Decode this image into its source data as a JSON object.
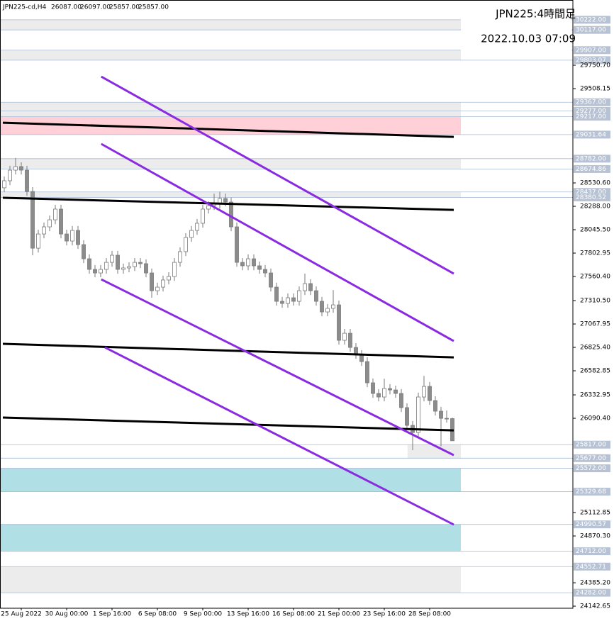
{
  "chart_data": {
    "type": "candlestick",
    "symbol": "JPN225-cd,H4",
    "header_values": [
      "26087.00",
      "26097.00",
      "25857.00",
      "25857.00"
    ],
    "title": "JPN225:4時間足",
    "subtitle": "2022.10.03 07:09",
    "categories": [
      null,
      null,
      null,
      "25 Aug 2022",
      null,
      null,
      null,
      null,
      null,
      null,
      null,
      "30 Aug 00:00",
      null,
      null,
      null,
      null,
      null,
      null,
      null,
      "1 Sep 16:00",
      null,
      null,
      null,
      null,
      null,
      null,
      null,
      "6 Sep 08:00",
      null,
      null,
      null,
      null,
      null,
      null,
      null,
      "9 Sep 00:00",
      null,
      null,
      null,
      null,
      null,
      null,
      null,
      "13 Sep 16:00",
      null,
      null,
      null,
      null,
      null,
      null,
      null,
      "16 Sep 08:00",
      null,
      null,
      null,
      null,
      null,
      null,
      null,
      "21 Sep 00:00",
      null,
      null,
      null,
      null,
      null,
      null,
      null,
      "23 Sep 16:00",
      null,
      null,
      null,
      null,
      null,
      null,
      null,
      "28 Sep 08:00",
      null,
      null,
      null,
      null
    ],
    "open": [
      28480,
      28553,
      28663,
      28700,
      28663,
      28442,
      27854,
      28001,
      28075,
      28148,
      28259,
      28001,
      27928,
      28038,
      27891,
      27744,
      27634,
      27597,
      27634,
      27707,
      27781,
      27634,
      27649,
      27663,
      27707,
      27693,
      27597,
      27413,
      27450,
      27524,
      27560,
      27707,
      27818,
      27965,
      28038,
      28112,
      28259,
      28295,
      28310,
      28369,
      28332,
      28075,
      27707,
      27671,
      27744,
      27671,
      27634,
      27597,
      27450,
      27303,
      27281,
      27340,
      27303,
      27413,
      27487,
      27413,
      27303,
      27193,
      27230,
      27266,
      26899,
      26972,
      26825,
      26752,
      26678,
      26458,
      26348,
      26311,
      26399,
      26384,
      26348,
      26201,
      26017,
      25943,
      26311,
      26421,
      26274,
      26164,
      26090,
      26087
    ],
    "high": [
      28598,
      28708,
      28790,
      28745,
      28708,
      28487,
      28046,
      28120,
      28193,
      28304,
      28304,
      28046,
      28083,
      28083,
      27936,
      27789,
      27679,
      27679,
      27752,
      27826,
      27826,
      27694,
      27708,
      27752,
      27752,
      27738,
      27642,
      27495,
      27569,
      27605,
      27752,
      27863,
      28010,
      28083,
      28157,
      28304,
      28340,
      28420,
      28440,
      28420,
      28377,
      28120,
      27752,
      27789,
      27789,
      27716,
      27679,
      27642,
      27495,
      27348,
      27385,
      27385,
      27458,
      27590,
      27532,
      27458,
      27348,
      27275,
      27420,
      27311,
      27017,
      27017,
      26870,
      26797,
      26723,
      26503,
      26393,
      26500,
      26444,
      26429,
      26393,
      26246,
      26062,
      26356,
      26530,
      26466,
      26319,
      26209,
      26172,
      26097
    ],
    "low": [
      28435,
      28508,
      28618,
      28618,
      28397,
      27780,
      27809,
      27956,
      28030,
      28103,
      27956,
      27883,
      27883,
      27846,
      27699,
      27589,
      27552,
      27552,
      27589,
      27662,
      27589,
      27589,
      27604,
      27618,
      27648,
      27552,
      27340,
      27368,
      27405,
      27479,
      27515,
      27662,
      27773,
      27920,
      27993,
      28067,
      28214,
      28250,
      28265,
      28287,
      28030,
      27662,
      27626,
      27626,
      27626,
      27589,
      27552,
      27405,
      27258,
      27236,
      27236,
      27258,
      27258,
      27368,
      27368,
      27258,
      27148,
      27148,
      27185,
      26854,
      26854,
      26780,
      26707,
      26633,
      26413,
      26303,
      26266,
      26266,
      26339,
      26303,
      26156,
      25972,
      25760,
      25898,
      26266,
      26229,
      26119,
      25800,
      26045,
      25857
    ],
    "close": [
      28553,
      28663,
      28700,
      28663,
      28442,
      27854,
      28001,
      28075,
      28148,
      28259,
      28001,
      27928,
      28038,
      27891,
      27744,
      27634,
      27597,
      27634,
      27707,
      27781,
      27634,
      27649,
      27663,
      27707,
      27693,
      27597,
      27413,
      27450,
      27524,
      27560,
      27707,
      27818,
      27965,
      28038,
      28112,
      28259,
      28295,
      28310,
      28369,
      28332,
      28075,
      27707,
      27671,
      27744,
      27671,
      27634,
      27597,
      27450,
      27303,
      27281,
      27340,
      27303,
      27413,
      27487,
      27413,
      27303,
      27193,
      27230,
      27266,
      26899,
      26972,
      26825,
      26752,
      26678,
      26458,
      26348,
      26311,
      26399,
      26384,
      26348,
      26201,
      26017,
      25943,
      26311,
      26421,
      26274,
      26164,
      26090,
      26087,
      25857
    ],
    "up_color": "#ffffff",
    "down_color": "#8c8c8c",
    "wick_color": "#7a7a7a",
    "ylim": [
      24121,
      30427
    ],
    "yticks": [
      {
        "value": 29750.7,
        "label": "29750.70"
      },
      {
        "value": 29508.15,
        "label": "29508.15"
      },
      {
        "value": 28530.6,
        "label": "28530.60"
      },
      {
        "value": 28288,
        "label": "28288.00"
      },
      {
        "value": 28045.5,
        "label": "28045.50"
      },
      {
        "value": 27802.95,
        "label": "27802.95"
      },
      {
        "value": 27560.4,
        "label": "27560.40"
      },
      {
        "value": 27310.5,
        "label": "27310.50"
      },
      {
        "value": 27067.95,
        "label": "27067.95"
      },
      {
        "value": 26825.4,
        "label": "26825.40"
      },
      {
        "value": 26582.85,
        "label": "26582.85"
      },
      {
        "value": 26332.95,
        "label": "26332.95"
      },
      {
        "value": 26090.4,
        "label": "26090.40"
      },
      {
        "value": 25112.85,
        "label": "25112.85"
      },
      {
        "value": 24870.3,
        "label": "24870.30"
      },
      {
        "value": 24385.2,
        "label": "24385.20"
      },
      {
        "value": 24142.65,
        "label": "24142.65"
      }
    ],
    "levels": [
      {
        "value": 30222,
        "label": "30222.00"
      },
      {
        "value": 30117,
        "label": "30117.00"
      },
      {
        "value": 29907,
        "label": "29907.00"
      },
      {
        "value": 29803.07,
        "label": "29803.07"
      },
      {
        "value": 29367,
        "label": "29367.00"
      },
      {
        "value": 29277,
        "label": "29277.00"
      },
      {
        "value": 29217,
        "label": "29217.00"
      },
      {
        "value": 29031.64,
        "label": "29031.64"
      },
      {
        "value": 28782,
        "label": "28782.00"
      },
      {
        "value": 28674.86,
        "label": "28674.86"
      },
      {
        "value": 28437,
        "label": "28437.00"
      },
      {
        "value": 28380.52,
        "label": "28380.52"
      },
      {
        "value": 25817,
        "label": "25817.00"
      },
      {
        "value": 25677,
        "label": "25677.00"
      },
      {
        "value": 25572,
        "label": "25572.00"
      },
      {
        "value": 25329.68,
        "label": "25329.68"
      },
      {
        "value": 24990.57,
        "label": "24990.57"
      },
      {
        "value": 24712,
        "label": "24712.00"
      },
      {
        "value": 24552.71,
        "label": "24552.71"
      },
      {
        "value": 24282,
        "label": "24282.00"
      }
    ],
    "zones": [
      {
        "low": 30117,
        "high": 30222,
        "color": "#ececec"
      },
      {
        "low": 29803.07,
        "high": 29907,
        "color": "#ececec"
      },
      {
        "low": 29217,
        "high": 29367,
        "color": "#ececec"
      },
      {
        "low": 29031.64,
        "high": 29217,
        "color": "#ffd0d8"
      },
      {
        "low": 28674.86,
        "high": 28782,
        "color": "#ececec"
      },
      {
        "low": 28380.52,
        "high": 28437,
        "color": "#ececec"
      },
      {
        "low": 25677,
        "high": 25817,
        "color": "#ececec",
        "start": 71.1
      },
      {
        "low": 25329.68,
        "high": 25572,
        "color": "#b0dfe6"
      },
      {
        "low": 24712,
        "high": 24990.57,
        "color": "#b0dfe6"
      },
      {
        "low": 24282,
        "high": 24552.71,
        "color": "#ececec"
      }
    ],
    "trendlines": [
      {
        "x": [
          -0.25,
          79.25
        ],
        "y": [
          29155,
          29008
        ],
        "color": "#000000"
      },
      {
        "x": [
          -0.25,
          79.25
        ],
        "y": [
          28376,
          28251
        ],
        "color": "#000000"
      },
      {
        "x": [
          -0.25,
          79.25
        ],
        "y": [
          26862,
          26722
        ],
        "color": "#000000"
      },
      {
        "x": [
          -0.25,
          79.25
        ],
        "y": [
          26098,
          25965
        ],
        "color": "#000000"
      },
      {
        "x": [
          17.1,
          79.25
        ],
        "y": [
          29633,
          27590
        ],
        "color": "#8a2be2"
      },
      {
        "x": [
          17.1,
          79.25
        ],
        "y": [
          28935,
          26891
        ],
        "color": "#8a2be2"
      },
      {
        "x": [
          17.1,
          79.25
        ],
        "y": [
          27531,
          25708
        ],
        "color": "#8a2be2"
      },
      {
        "x": [
          17.75,
          79.25
        ],
        "y": [
          26825,
          24988
        ],
        "color": "#8a2be2"
      }
    ]
  }
}
